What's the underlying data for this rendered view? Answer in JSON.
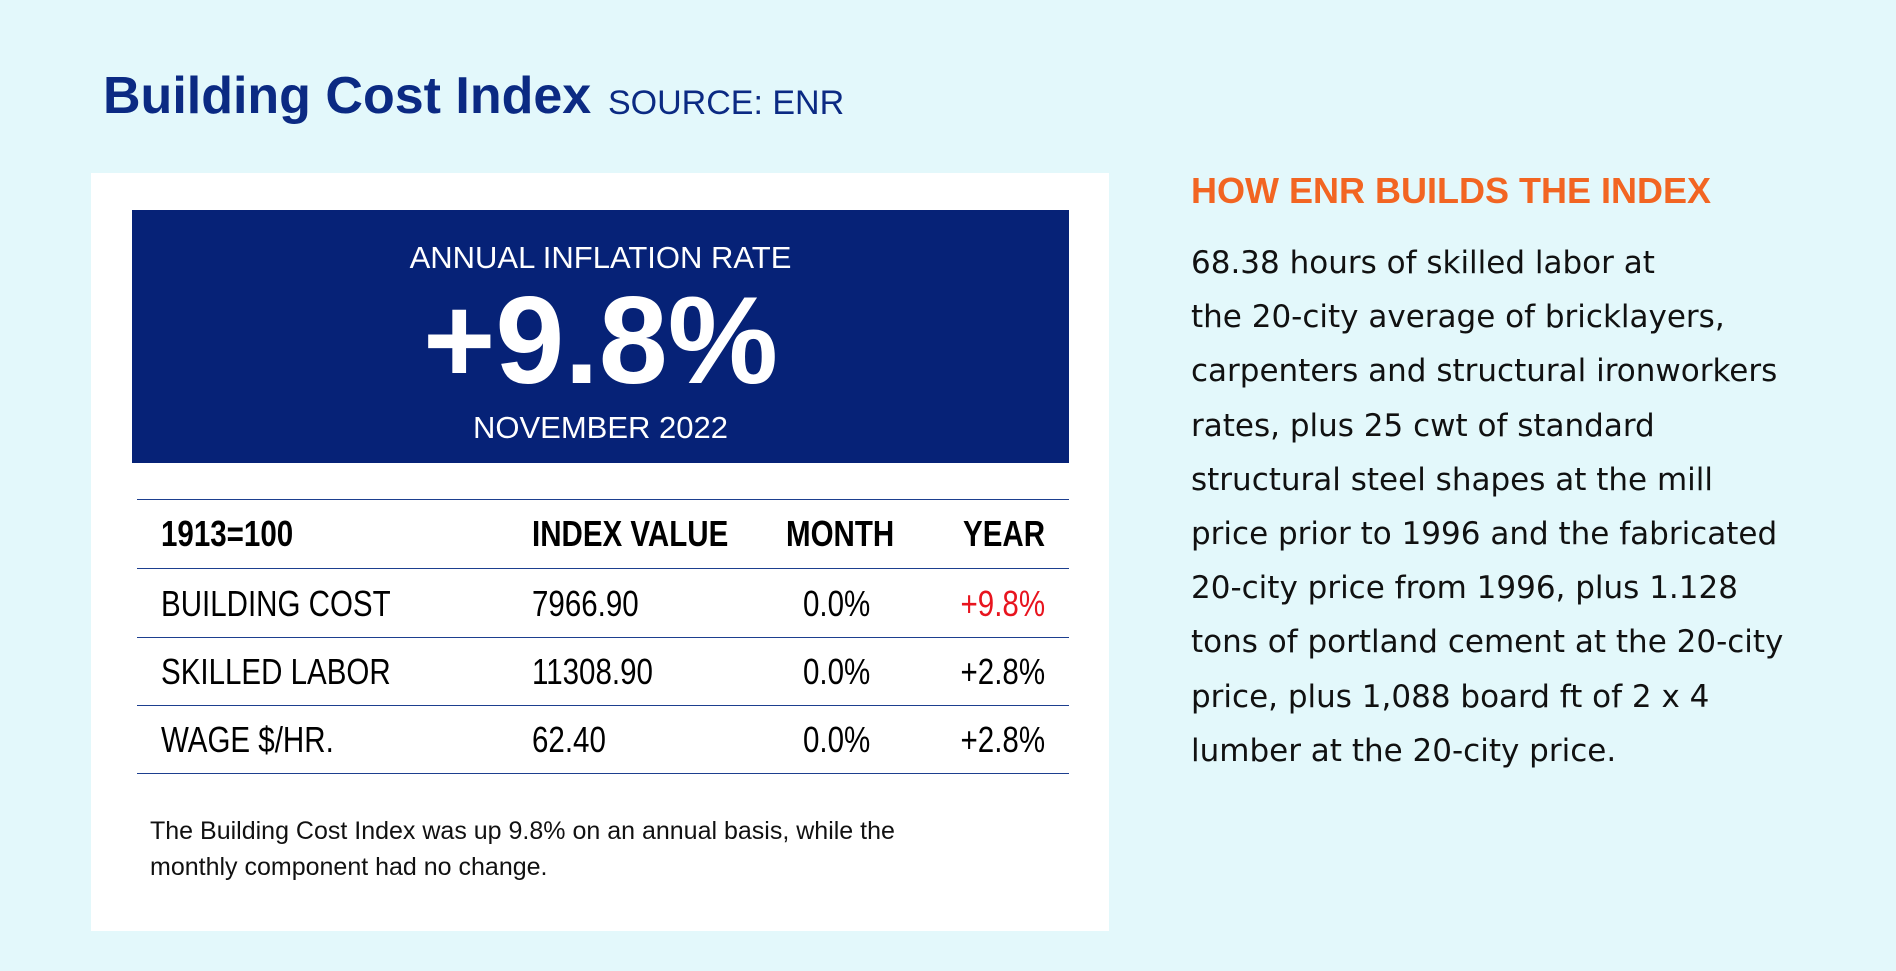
{
  "header": {
    "title": "Building Cost Index",
    "source": "SOURCE: ENR"
  },
  "banner": {
    "label": "ANNUAL INFLATION RATE",
    "value": "+9.8%",
    "date": "NOVEMBER 2022"
  },
  "table": {
    "header": [
      "1913=100",
      "INDEX VALUE",
      "MONTH",
      "YEAR"
    ],
    "rows": [
      [
        "BUILDING COST",
        "7966.90",
        "0.0%",
        "+9.8%"
      ],
      [
        "SKILLED LABOR",
        "11308.90",
        "0.0%",
        "+2.8%"
      ],
      [
        "WAGE $/HR.",
        "62.40",
        "0.0%",
        "+2.8%"
      ]
    ]
  },
  "note": [
    "The Building Cost Index was up 9.8% on an annual basis, while the",
    "monthly component had no change."
  ],
  "sidebar": {
    "title": "HOW ENR BUILDS THE INDEX",
    "lines": [
      "68.38 hours of skilled labor at",
      "the 20-city average of bricklayers,",
      "carpenters and structural ironworkers",
      "rates, plus 25 cwt of standard",
      "structural steel shapes at the mill",
      "price prior to 1996 and the fabricated",
      "20-city price from 1996, plus 1.128",
      "tons of portland cement at the 20-city",
      "price, plus 1,088 board ft of 2 x 4",
      "lumber at the 20-city price."
    ]
  }
}
